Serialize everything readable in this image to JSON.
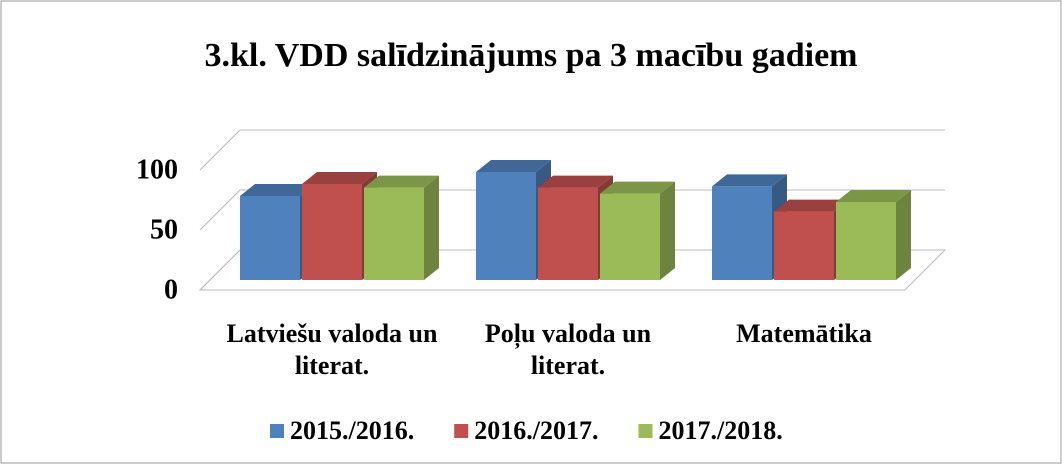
{
  "chart_data": {
    "type": "bar3d",
    "title": "3.kl. VDD salīdzinājums pa 3 macību gadiem",
    "categories": [
      "Latviešu valoda un literat.",
      "Poļu valoda un literat.",
      "Matemātika"
    ],
    "series": [
      {
        "name": "2015./2016.",
        "color": "#4f81bd",
        "values": [
          70,
          90,
          78
        ]
      },
      {
        "name": "2016./2017.",
        "color": "#c0504d",
        "values": [
          80,
          77,
          57
        ]
      },
      {
        "name": "2017./2018.",
        "color": "#9bbb59",
        "values": [
          77,
          72,
          65
        ]
      }
    ],
    "ylim": [
      0,
      100
    ],
    "yticks": [
      0,
      50,
      100
    ],
    "grid": true,
    "legend": "bottom"
  }
}
